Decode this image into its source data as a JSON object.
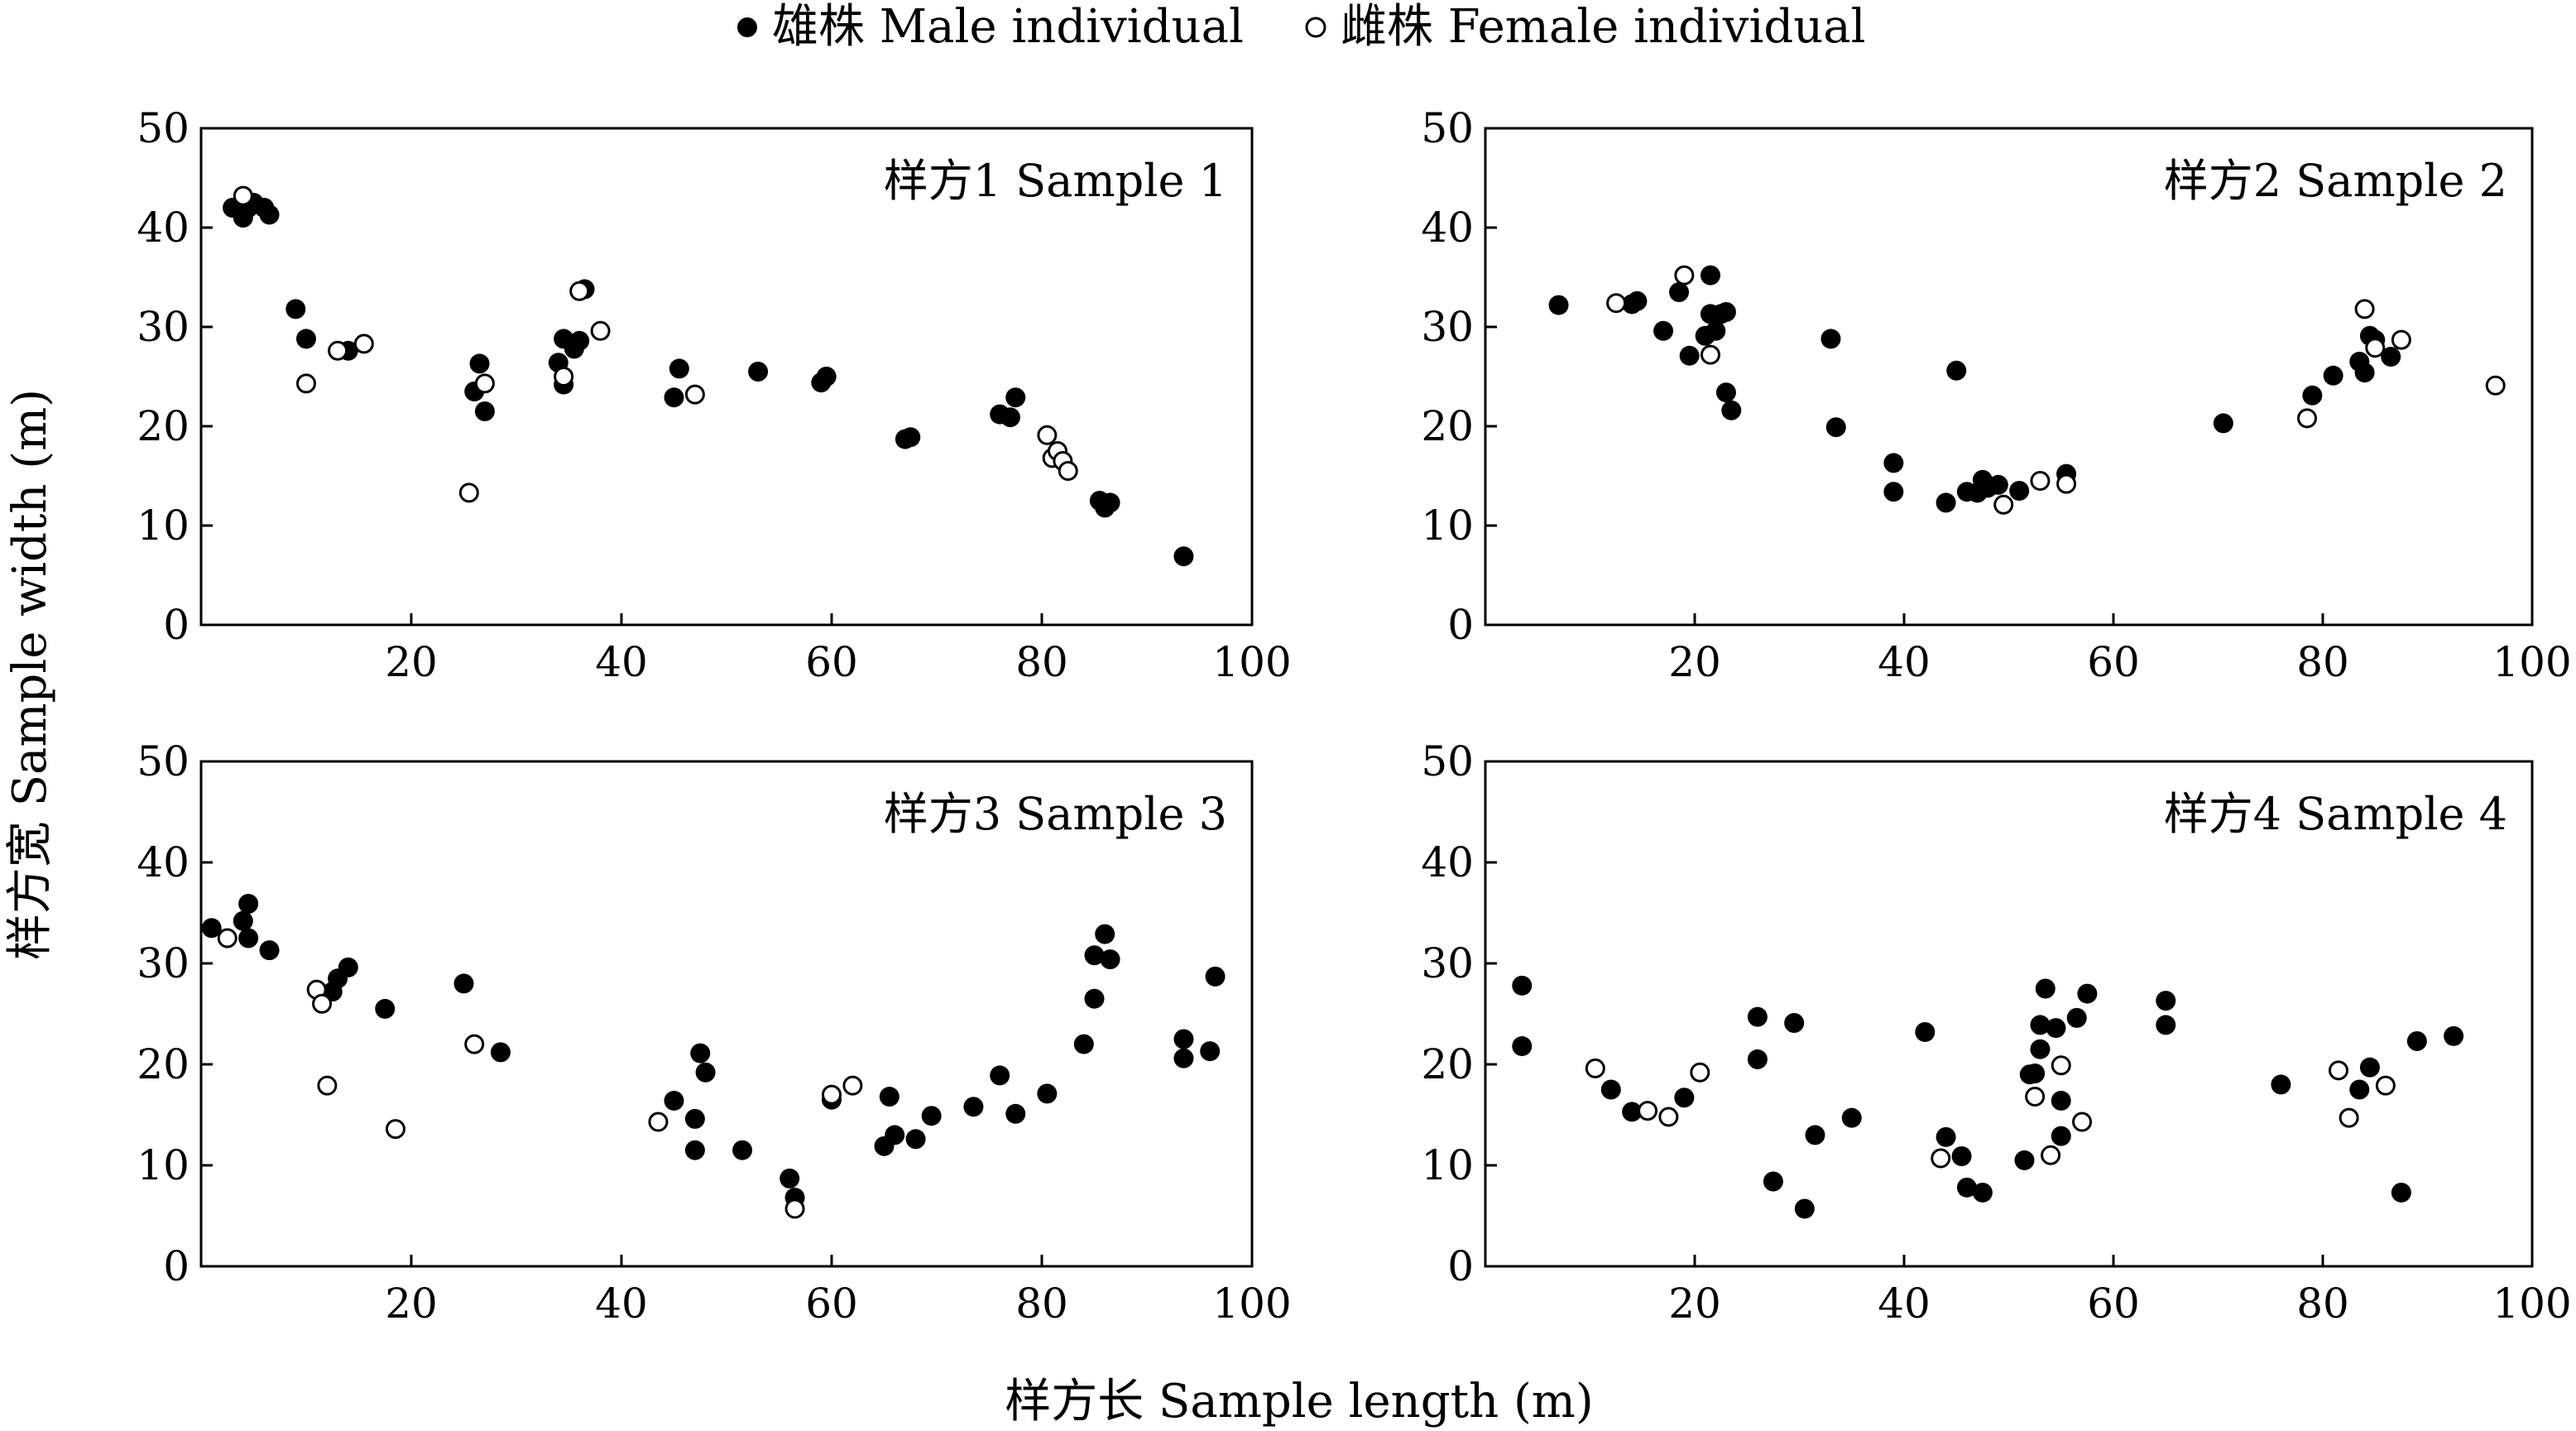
{
  "legend": {
    "male": "雄株 Male individual",
    "female": "雌株 Female individual"
  },
  "xlabel": "样方长 Sample length (m)",
  "ylabel": "样方宽 Sample width (m)",
  "chart_data": [
    {
      "type": "scatter",
      "title": "样方1 Sample 1",
      "xlim": [
        0,
        100
      ],
      "ylim": [
        0,
        50
      ],
      "xticks": [
        20,
        40,
        60,
        80,
        100
      ],
      "yticks": [
        0,
        10,
        20,
        30,
        40,
        50
      ],
      "series": [
        {
          "name": "雄株 Male individual",
          "marker": "filled",
          "x": [
            3,
            4,
            4.5,
            5,
            6,
            6.5,
            9,
            10,
            14,
            26,
            26.5,
            27,
            34,
            34.5,
            34.5,
            35.5,
            36,
            36.5,
            45,
            45.5,
            53,
            59,
            59.5,
            67,
            67.5,
            76,
            77,
            77.5,
            85.5,
            86,
            86.5,
            93.5
          ],
          "y": [
            42,
            41,
            42,
            42.5,
            42,
            41.3,
            31.8,
            28.8,
            27.6,
            23.5,
            26.3,
            21.5,
            26.4,
            24.2,
            28.8,
            27.8,
            28.6,
            33.8,
            22.9,
            25.8,
            25.5,
            24.4,
            25,
            18.7,
            18.9,
            21.2,
            20.9,
            22.9,
            12.5,
            11.8,
            12.3,
            6.9
          ]
        },
        {
          "name": "雌株 Female individual",
          "marker": "open",
          "x": [
            4,
            10,
            13,
            15.5,
            25.5,
            27,
            34.5,
            36,
            38,
            47,
            80.5,
            81,
            81.5,
            82,
            82.5
          ],
          "y": [
            43.2,
            24.3,
            27.6,
            28.3,
            13.3,
            24.3,
            25,
            33.6,
            29.6,
            23.2,
            19.1,
            16.8,
            17.5,
            16.5,
            15.5
          ]
        }
      ]
    },
    {
      "type": "scatter",
      "title": "样方2 Sample 2",
      "xlim": [
        0,
        100
      ],
      "ylim": [
        0,
        50
      ],
      "xticks": [
        20,
        40,
        60,
        80,
        100
      ],
      "yticks": [
        0,
        10,
        20,
        30,
        40,
        50
      ],
      "series": [
        {
          "name": "雄株 Male individual",
          "marker": "filled",
          "x": [
            7,
            14,
            14.5,
            17,
            18.5,
            19.5,
            21,
            21.5,
            21.5,
            22,
            22.5,
            23,
            23,
            23.5,
            33,
            33.5,
            39,
            39,
            44,
            45,
            46,
            47,
            47.5,
            48,
            49,
            51,
            55.5,
            70.5,
            79,
            81,
            83.5,
            84,
            84.5,
            85,
            86.5
          ],
          "y": [
            32.2,
            32.3,
            32.6,
            29.6,
            33.5,
            27.1,
            29.1,
            35.2,
            31.3,
            29.6,
            31.3,
            31.5,
            23.4,
            21.6,
            28.8,
            19.9,
            16.3,
            13.4,
            12.3,
            25.6,
            13.4,
            13.3,
            14.6,
            13.8,
            14.1,
            13.5,
            15.2,
            20.3,
            23.1,
            25.1,
            26.5,
            25.4,
            29.1,
            28.7,
            27
          ]
        },
        {
          "name": "雌株 Female individual",
          "marker": "open",
          "x": [
            12.5,
            19,
            21.5,
            49.5,
            53,
            55.5,
            78.5,
            84,
            85,
            87.5,
            96.5
          ],
          "y": [
            32.4,
            35.2,
            27.2,
            12.1,
            14.5,
            14.2,
            20.8,
            31.8,
            27.9,
            28.7,
            24.1
          ]
        }
      ]
    },
    {
      "type": "scatter",
      "title": "样方3 Sample 3",
      "xlim": [
        0,
        100
      ],
      "ylim": [
        0,
        50
      ],
      "xticks": [
        20,
        40,
        60,
        80,
        100
      ],
      "yticks": [
        0,
        10,
        20,
        30,
        40,
        50
      ],
      "series": [
        {
          "name": "雄株 Male individual",
          "marker": "filled",
          "x": [
            1,
            4,
            4.5,
            4.5,
            6.5,
            12.5,
            13,
            14,
            17.5,
            25,
            28.5,
            45,
            47,
            47,
            47.5,
            48,
            51.5,
            56,
            56.5,
            60,
            65,
            65.5,
            66,
            68,
            69.5,
            73.5,
            76,
            77.5,
            80.5,
            84,
            85,
            85,
            86,
            86.5,
            93.5,
            93.5,
            96,
            96.5
          ],
          "y": [
            33.5,
            34.2,
            35.9,
            32.5,
            31.3,
            27.2,
            28.5,
            29.6,
            25.5,
            28,
            21.2,
            16.4,
            14.6,
            11.5,
            21.1,
            19.2,
            11.5,
            8.7,
            6.8,
            16.5,
            11.9,
            16.8,
            13,
            12.6,
            14.9,
            15.8,
            18.9,
            15.1,
            17.1,
            22,
            26.5,
            30.8,
            32.9,
            30.4,
            22.5,
            20.6,
            21.3,
            28.7
          ]
        },
        {
          "name": "雌株 Female individual",
          "marker": "open",
          "x": [
            2.5,
            11,
            11.5,
            12,
            18.5,
            26,
            43.5,
            56.5,
            60,
            62
          ],
          "y": [
            32.5,
            27.4,
            26,
            17.9,
            13.6,
            22,
            14.3,
            5.7,
            17,
            17.9
          ]
        }
      ]
    },
    {
      "type": "scatter",
      "title": "样方4 Sample 4",
      "xlim": [
        0,
        100
      ],
      "ylim": [
        0,
        50
      ],
      "xticks": [
        20,
        40,
        60,
        80,
        100
      ],
      "yticks": [
        0,
        10,
        20,
        30,
        40,
        50
      ],
      "series": [
        {
          "name": "雄株 Male individual",
          "marker": "filled",
          "x": [
            3.5,
            3.5,
            12,
            14,
            19,
            26,
            26,
            27.5,
            29.5,
            30.5,
            31.5,
            35,
            42,
            44,
            45.5,
            46,
            47.5,
            51.5,
            52,
            52.5,
            53,
            53,
            53.5,
            54.5,
            55,
            55,
            56.5,
            57.5,
            65,
            65,
            76,
            83.5,
            84.5,
            87.5,
            89,
            92.5
          ],
          "y": [
            27.8,
            21.8,
            17.5,
            15.3,
            16.7,
            20.5,
            24.7,
            8.4,
            24.1,
            5.7,
            13,
            14.7,
            23.2,
            12.8,
            10.9,
            7.8,
            7.3,
            10.5,
            19,
            19.1,
            23.9,
            21.5,
            27.5,
            23.6,
            16.4,
            12.9,
            24.6,
            27,
            23.9,
            26.3,
            18,
            17.5,
            19.7,
            7.3,
            22.3,
            22.8
          ]
        },
        {
          "name": "雌株 Female individual",
          "marker": "open",
          "x": [
            10.5,
            15.5,
            17.5,
            20.5,
            43.5,
            52.5,
            54,
            55,
            57,
            81.5,
            82.5,
            86
          ],
          "y": [
            19.6,
            15.4,
            14.8,
            19.2,
            10.7,
            16.8,
            11,
            19.9,
            14.3,
            19.4,
            14.7,
            17.9
          ]
        }
      ]
    }
  ]
}
